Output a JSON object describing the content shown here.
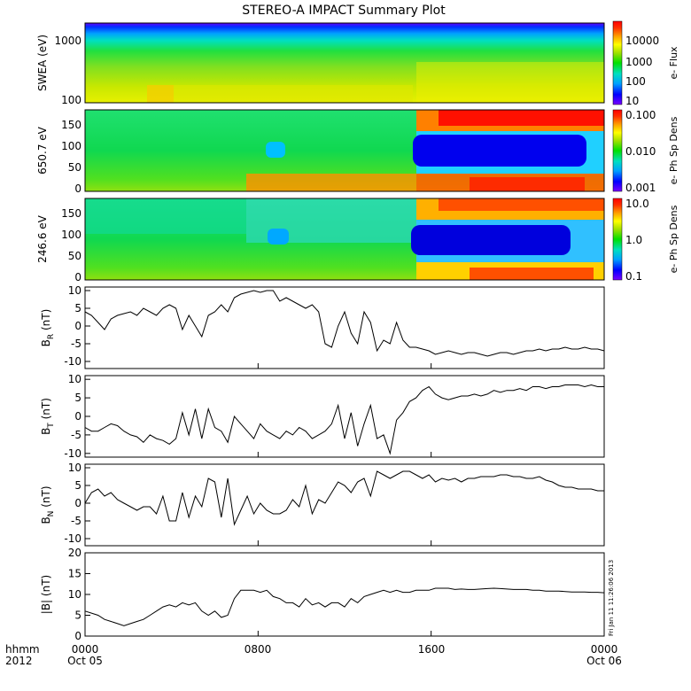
{
  "title": "STEREO-A IMPACT Summary Plot",
  "footer": {
    "row1_left": "hhmm",
    "row2_left": "2012",
    "date_start": "Oct 05",
    "date_end": "Oct 06",
    "x_ticks": [
      "0000",
      "0800",
      "1600",
      "0000"
    ]
  },
  "timestamp_note": "Fri Jan 11 11:26:06 2013",
  "spectrograms": [
    {
      "ylabel": "SWEA (eV)",
      "yticks": [
        "1000",
        "100"
      ],
      "colorbar_label": "e- Flux",
      "colorbar_ticks": [
        "10000",
        "1000",
        "100",
        "10"
      ]
    },
    {
      "ylabel": "650.7 eV",
      "yticks": [
        "150",
        "100",
        "50",
        "0"
      ],
      "colorbar_label": "e- Ph Sp Dens",
      "colorbar_ticks": [
        "0.100",
        "0.010",
        "0.001"
      ]
    },
    {
      "ylabel": "246.6 eV",
      "yticks": [
        "150",
        "100",
        "50",
        "0"
      ],
      "colorbar_label": "e- Ph Sp Dens",
      "colorbar_ticks": [
        "10.0",
        "1.0",
        "0.1"
      ]
    }
  ],
  "colors": {
    "line": "#000000",
    "spectrum": [
      "#7a00ff",
      "#0000ff",
      "#00a0ff",
      "#00e0c0",
      "#00e000",
      "#a0e000",
      "#ffff00",
      "#ffa000",
      "#ff3000",
      "#ff0000"
    ]
  },
  "chart_data": [
    {
      "type": "line",
      "ylabel_main": "B",
      "ylabel_sub": "R",
      "ylabel_unit": "(nT)",
      "xlim": [
        0,
        24
      ],
      "ylim": [
        -12,
        11
      ],
      "yticks": [
        "10",
        "5",
        "0",
        "-5",
        "-10"
      ],
      "x": [
        0,
        0.3,
        0.6,
        0.9,
        1.2,
        1.5,
        1.8,
        2.1,
        2.4,
        2.7,
        3.0,
        3.3,
        3.6,
        3.9,
        4.2,
        4.5,
        4.8,
        5.1,
        5.4,
        5.7,
        6.0,
        6.3,
        6.6,
        6.9,
        7.2,
        7.5,
        7.8,
        8.1,
        8.4,
        8.7,
        9.0,
        9.3,
        9.6,
        9.9,
        10.2,
        10.5,
        10.8,
        11.1,
        11.4,
        11.7,
        12.0,
        12.3,
        12.6,
        12.9,
        13.2,
        13.5,
        13.8,
        14.1,
        14.4,
        14.7,
        15.0,
        15.3,
        15.6,
        15.9,
        16.2,
        16.5,
        16.8,
        17.1,
        17.4,
        17.7,
        18.0,
        18.3,
        18.6,
        18.9,
        19.2,
        19.5,
        19.8,
        20.1,
        20.4,
        20.7,
        21.0,
        21.3,
        21.6,
        21.9,
        22.2,
        22.5,
        22.8,
        23.1,
        23.4,
        23.7,
        24.0
      ],
      "y": [
        4,
        3,
        1,
        -1,
        2,
        3,
        3.5,
        4,
        3,
        5,
        4,
        3,
        5,
        6,
        5,
        -1,
        3,
        0,
        -3,
        3,
        4,
        6,
        4,
        8,
        9,
        9.5,
        10,
        9.5,
        10,
        10,
        7,
        8,
        7,
        6,
        5,
        6,
        4,
        -5,
        -6,
        0,
        4,
        -2,
        -5,
        4,
        1,
        -7,
        -4,
        -5,
        1,
        -4,
        -6,
        -6,
        -6.5,
        -7,
        -8,
        -7.5,
        -7,
        -7.5,
        -8,
        -7.5,
        -7.5,
        -8,
        -8.5,
        -8,
        -7.5,
        -7.5,
        -8,
        -7.5,
        -7,
        -7,
        -6.5,
        -7,
        -6.5,
        -6.5,
        -6,
        -6.5,
        -6.5,
        -6,
        -6.5,
        -6.5,
        -7
      ]
    },
    {
      "type": "line",
      "ylabel_main": "B",
      "ylabel_sub": "T",
      "ylabel_unit": "(nT)",
      "xlim": [
        0,
        24
      ],
      "ylim": [
        -11,
        11
      ],
      "yticks": [
        "10",
        "5",
        "0",
        "-5",
        "-10"
      ],
      "x": [
        0,
        0.3,
        0.6,
        0.9,
        1.2,
        1.5,
        1.8,
        2.1,
        2.4,
        2.7,
        3.0,
        3.3,
        3.6,
        3.9,
        4.2,
        4.5,
        4.8,
        5.1,
        5.4,
        5.7,
        6.0,
        6.3,
        6.6,
        6.9,
        7.2,
        7.5,
        7.8,
        8.1,
        8.4,
        8.7,
        9.0,
        9.3,
        9.6,
        9.9,
        10.2,
        10.5,
        10.8,
        11.1,
        11.4,
        11.7,
        12.0,
        12.3,
        12.6,
        12.9,
        13.2,
        13.5,
        13.8,
        14.1,
        14.4,
        14.7,
        15.0,
        15.3,
        15.6,
        15.9,
        16.2,
        16.5,
        16.8,
        17.1,
        17.4,
        17.7,
        18.0,
        18.3,
        18.6,
        18.9,
        19.2,
        19.5,
        19.8,
        20.1,
        20.4,
        20.7,
        21.0,
        21.3,
        21.6,
        21.9,
        22.2,
        22.5,
        22.8,
        23.1,
        23.4,
        23.7,
        24.0
      ],
      "y": [
        -3,
        -4,
        -4,
        -3,
        -2,
        -2.5,
        -4,
        -5,
        -5.5,
        -7,
        -5,
        -6,
        -6.5,
        -7.5,
        -6,
        1,
        -5,
        2,
        -6,
        2,
        -3,
        -4,
        -7,
        0,
        -2,
        -4,
        -6,
        -2,
        -4,
        -5,
        -6,
        -4,
        -5,
        -3,
        -4,
        -6,
        -5,
        -4,
        -2,
        3,
        -6,
        1,
        -8,
        -2,
        3,
        -6,
        -5,
        -10,
        -1,
        1,
        4,
        5,
        7,
        8,
        6,
        5,
        4.5,
        5,
        5.5,
        5.5,
        6,
        5.5,
        6,
        7,
        6.5,
        7,
        7,
        7.5,
        7,
        8,
        8,
        7.5,
        8,
        8,
        8.5,
        8.5,
        8.5,
        8,
        8.5,
        8,
        8
      ]
    },
    {
      "type": "line",
      "ylabel_main": "B",
      "ylabel_sub": "N",
      "ylabel_unit": "(nT)",
      "xlim": [
        0,
        24
      ],
      "ylim": [
        -12,
        11
      ],
      "yticks": [
        "10",
        "5",
        "0",
        "-5",
        "-10"
      ],
      "x": [
        0,
        0.3,
        0.6,
        0.9,
        1.2,
        1.5,
        1.8,
        2.1,
        2.4,
        2.7,
        3.0,
        3.3,
        3.6,
        3.9,
        4.2,
        4.5,
        4.8,
        5.1,
        5.4,
        5.7,
        6.0,
        6.3,
        6.6,
        6.9,
        7.2,
        7.5,
        7.8,
        8.1,
        8.4,
        8.7,
        9.0,
        9.3,
        9.6,
        9.9,
        10.2,
        10.5,
        10.8,
        11.1,
        11.4,
        11.7,
        12.0,
        12.3,
        12.6,
        12.9,
        13.2,
        13.5,
        13.8,
        14.1,
        14.4,
        14.7,
        15.0,
        15.3,
        15.6,
        15.9,
        16.2,
        16.5,
        16.8,
        17.1,
        17.4,
        17.7,
        18.0,
        18.3,
        18.6,
        18.9,
        19.2,
        19.5,
        19.8,
        20.1,
        20.4,
        20.7,
        21.0,
        21.3,
        21.6,
        21.9,
        22.2,
        22.5,
        22.8,
        23.1,
        23.4,
        23.7,
        24.0
      ],
      "y": [
        0,
        3,
        4,
        2,
        3,
        1,
        0,
        -1,
        -2,
        -1,
        -1,
        -3,
        2,
        -5,
        -5,
        3,
        -4,
        2,
        -1,
        7,
        6,
        -4,
        7,
        -6,
        -2,
        2,
        -3,
        0,
        -2,
        -3,
        -3,
        -2,
        1,
        -1,
        5,
        -3,
        1,
        0,
        3,
        6,
        5,
        3,
        6,
        7,
        2,
        9,
        8,
        7,
        8,
        9,
        9,
        8,
        7,
        8,
        6,
        7,
        6.5,
        7,
        6,
        7,
        7,
        7.5,
        7.5,
        7.5,
        8,
        8,
        7.5,
        7.5,
        7,
        7,
        7.5,
        6.5,
        6,
        5,
        4.5,
        4.5,
        4,
        4,
        4,
        3.5,
        3.5
      ]
    },
    {
      "type": "line",
      "ylabel_main": "|B| (nT)",
      "ylabel_sub": "",
      "ylabel_unit": "",
      "xlim": [
        0,
        24
      ],
      "ylim": [
        0,
        20
      ],
      "yticks": [
        "20",
        "15",
        "10",
        "5",
        "0"
      ],
      "x": [
        0,
        0.3,
        0.6,
        0.9,
        1.2,
        1.5,
        1.8,
        2.1,
        2.4,
        2.7,
        3.0,
        3.3,
        3.6,
        3.9,
        4.2,
        4.5,
        4.8,
        5.1,
        5.4,
        5.7,
        6.0,
        6.3,
        6.6,
        6.9,
        7.2,
        7.5,
        7.8,
        8.1,
        8.4,
        8.7,
        9.0,
        9.3,
        9.6,
        9.9,
        10.2,
        10.5,
        10.8,
        11.1,
        11.4,
        11.7,
        12.0,
        12.3,
        12.6,
        12.9,
        13.2,
        13.5,
        13.8,
        14.1,
        14.4,
        14.7,
        15.0,
        15.3,
        15.6,
        15.9,
        16.2,
        16.5,
        16.8,
        17.1,
        17.4,
        17.7,
        18.0,
        18.3,
        18.6,
        18.9,
        19.2,
        19.5,
        19.8,
        20.1,
        20.4,
        20.7,
        21.0,
        21.3,
        21.6,
        21.9,
        22.2,
        22.5,
        22.8,
        23.1,
        23.4,
        23.7,
        24.0
      ],
      "y": [
        6,
        5.5,
        5,
        4,
        3.5,
        3,
        2.5,
        3,
        3.5,
        4,
        5,
        6,
        7,
        7.5,
        7,
        8,
        7.5,
        8,
        6,
        5,
        6,
        4.5,
        5,
        9,
        11,
        11,
        11,
        10.5,
        11,
        9.5,
        9,
        8,
        8,
        7,
        9,
        7.5,
        8,
        7,
        8,
        8,
        7,
        9,
        8,
        9.5,
        10,
        10.5,
        11,
        10.5,
        11,
        10.5,
        10.5,
        11,
        11,
        11,
        11.5,
        11.5,
        11.5,
        11.2,
        11.3,
        11.2,
        11.2,
        11.3,
        11.4,
        11.5,
        11.4,
        11.3,
        11.2,
        11.2,
        11.2,
        11,
        11,
        10.8,
        10.8,
        10.8,
        10.7,
        10.6,
        10.6,
        10.6,
        10.5,
        10.5,
        10.4
      ]
    }
  ]
}
